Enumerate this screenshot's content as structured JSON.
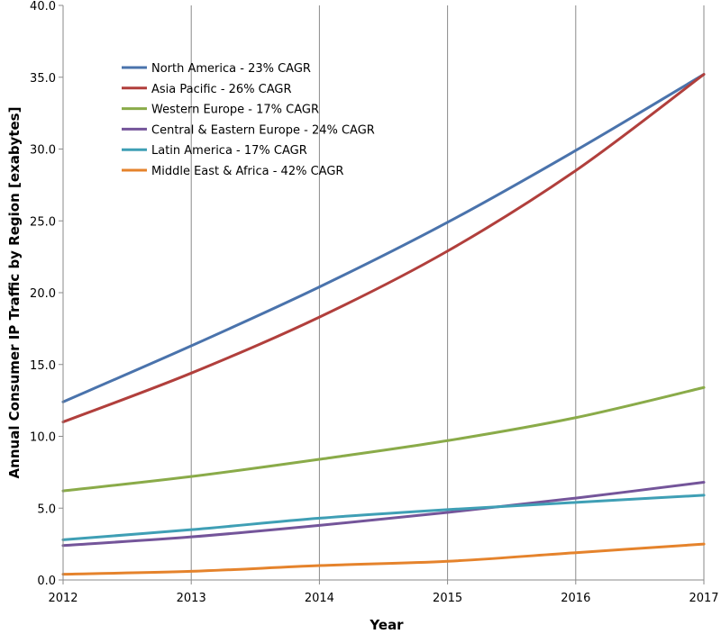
{
  "chart_data": {
    "type": "line",
    "title": "",
    "xlabel": "Year",
    "ylabel": "Annual Consumer IP Traffic by Region [exabytes]",
    "x": [
      2012,
      2013,
      2014,
      2015,
      2016,
      2017
    ],
    "xlim": [
      2012,
      2017
    ],
    "ylim": [
      0,
      40
    ],
    "yticks": [
      "0.0",
      "5.0",
      "10.0",
      "15.0",
      "20.0",
      "25.0",
      "30.0",
      "35.0",
      "40.0"
    ],
    "xticks": [
      "2012",
      "2013",
      "2014",
      "2015",
      "2016",
      "2017"
    ],
    "grid": "vertical",
    "legend_position": "top-left",
    "series": [
      {
        "name": "North America - 23% CAGR",
        "color": "#4a73ac",
        "values": [
          12.4,
          16.3,
          20.4,
          24.9,
          29.9,
          35.2
        ]
      },
      {
        "name": "Asia Pacific - 26% CAGR",
        "color": "#b13f3c",
        "values": [
          11.0,
          14.4,
          18.3,
          22.9,
          28.5,
          35.2
        ]
      },
      {
        "name": "Western Europe - 17% CAGR",
        "color": "#8aab49",
        "values": [
          6.2,
          7.2,
          8.4,
          9.7,
          11.3,
          13.4
        ]
      },
      {
        "name": "Central & Eastern Europe - 24% CAGR",
        "color": "#74559a",
        "values": [
          2.4,
          3.0,
          3.8,
          4.7,
          5.7,
          6.8
        ]
      },
      {
        "name": "Latin America - 17% CAGR",
        "color": "#3f9fb5",
        "values": [
          2.8,
          3.5,
          4.3,
          4.9,
          5.4,
          5.9
        ]
      },
      {
        "name": "Middle East & Africa - 42% CAGR",
        "color": "#e5832c",
        "values": [
          0.4,
          0.6,
          1.0,
          1.3,
          1.9,
          2.5
        ]
      }
    ]
  }
}
